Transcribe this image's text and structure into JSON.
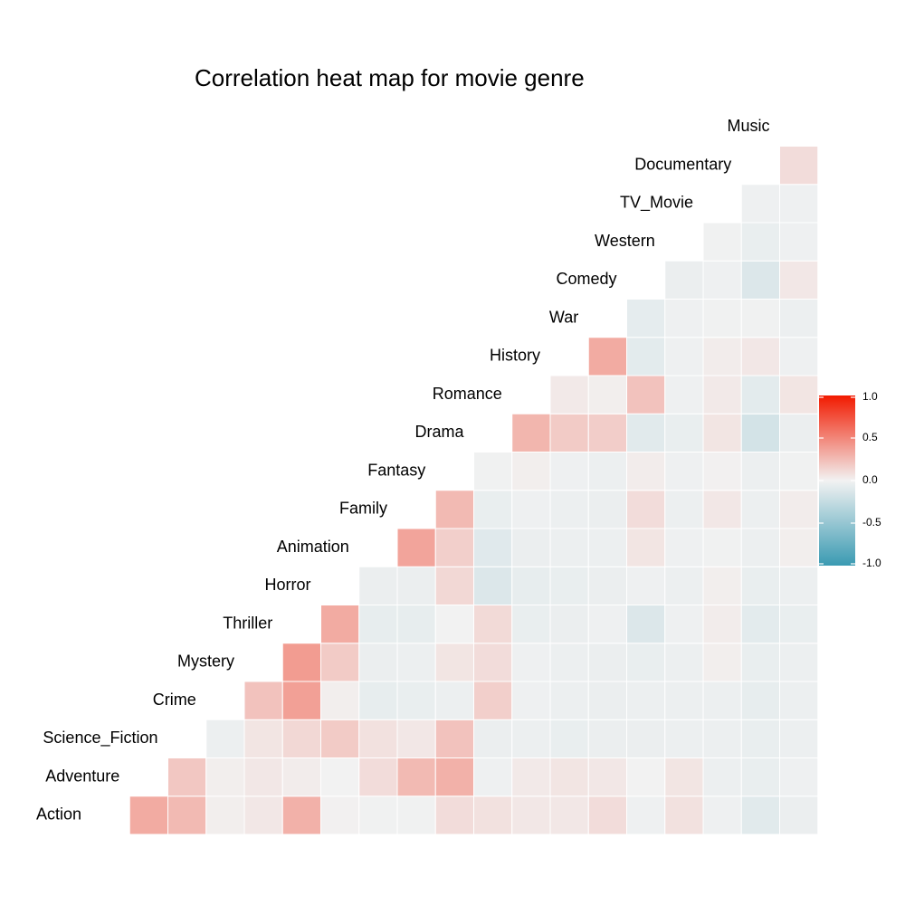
{
  "chart_data": {
    "type": "heatmap",
    "title": "Correlation heat map for movie genre",
    "variables": [
      "Action",
      "Adventure",
      "Science_Fiction",
      "Crime",
      "Mystery",
      "Thriller",
      "Horror",
      "Animation",
      "Family",
      "Fantasy",
      "Drama",
      "Romance",
      "History",
      "War",
      "Comedy",
      "Western",
      "TV_Movie",
      "Documentary",
      "Music"
    ],
    "layout": "lower-triangle, diagonal labels",
    "cells": [
      {
        "row": "Adventure",
        "col": "Action",
        "value": 0.33
      },
      {
        "row": "Science_Fiction",
        "col": "Action",
        "value": 0.26
      },
      {
        "row": "Science_Fiction",
        "col": "Adventure",
        "value": 0.2
      },
      {
        "row": "Crime",
        "col": "Action",
        "value": 0.02
      },
      {
        "row": "Crime",
        "col": "Adventure",
        "value": 0.02
      },
      {
        "row": "Crime",
        "col": "Science_Fiction",
        "value": -0.03
      },
      {
        "row": "Mystery",
        "col": "Action",
        "value": 0.05
      },
      {
        "row": "Mystery",
        "col": "Adventure",
        "value": 0.05
      },
      {
        "row": "Mystery",
        "col": "Science_Fiction",
        "value": 0.06
      },
      {
        "row": "Mystery",
        "col": "Crime",
        "value": 0.22
      },
      {
        "row": "Thriller",
        "col": "Action",
        "value": 0.3
      },
      {
        "row": "Thriller",
        "col": "Adventure",
        "value": 0.03
      },
      {
        "row": "Thriller",
        "col": "Science_Fiction",
        "value": 0.12
      },
      {
        "row": "Thriller",
        "col": "Crime",
        "value": 0.38
      },
      {
        "row": "Thriller",
        "col": "Mystery",
        "value": 0.4
      },
      {
        "row": "Horror",
        "col": "Action",
        "value": 0.01
      },
      {
        "row": "Horror",
        "col": "Adventure",
        "value": 0.0
      },
      {
        "row": "Horror",
        "col": "Science_Fiction",
        "value": 0.18
      },
      {
        "row": "Horror",
        "col": "Crime",
        "value": 0.02
      },
      {
        "row": "Horror",
        "col": "Mystery",
        "value": 0.18
      },
      {
        "row": "Horror",
        "col": "Thriller",
        "value": 0.33
      },
      {
        "row": "Animation",
        "col": "Action",
        "value": -0.01
      },
      {
        "row": "Animation",
        "col": "Adventure",
        "value": 0.1
      },
      {
        "row": "Animation",
        "col": "Science_Fiction",
        "value": 0.08
      },
      {
        "row": "Animation",
        "col": "Crime",
        "value": -0.06
      },
      {
        "row": "Animation",
        "col": "Mystery",
        "value": -0.04
      },
      {
        "row": "Animation",
        "col": "Thriller",
        "value": -0.06
      },
      {
        "row": "Animation",
        "col": "Horror",
        "value": -0.04
      },
      {
        "row": "Family",
        "col": "Action",
        "value": -0.01
      },
      {
        "row": "Family",
        "col": "Adventure",
        "value": 0.26
      },
      {
        "row": "Family",
        "col": "Science_Fiction",
        "value": 0.05
      },
      {
        "row": "Family",
        "col": "Crime",
        "value": -0.05
      },
      {
        "row": "Family",
        "col": "Mystery",
        "value": -0.03
      },
      {
        "row": "Family",
        "col": "Thriller",
        "value": -0.06
      },
      {
        "row": "Family",
        "col": "Horror",
        "value": -0.04
      },
      {
        "row": "Family",
        "col": "Animation",
        "value": 0.36
      },
      {
        "row": "Fantasy",
        "col": "Action",
        "value": 0.1
      },
      {
        "row": "Fantasy",
        "col": "Adventure",
        "value": 0.3
      },
      {
        "row": "Fantasy",
        "col": "Science_Fiction",
        "value": 0.22
      },
      {
        "row": "Fantasy",
        "col": "Crime",
        "value": -0.03
      },
      {
        "row": "Fantasy",
        "col": "Mystery",
        "value": 0.06
      },
      {
        "row": "Fantasy",
        "col": "Thriller",
        "value": 0.0
      },
      {
        "row": "Fantasy",
        "col": "Horror",
        "value": 0.12
      },
      {
        "row": "Fantasy",
        "col": "Animation",
        "value": 0.16
      },
      {
        "row": "Fantasy",
        "col": "Family",
        "value": 0.26
      },
      {
        "row": "Drama",
        "col": "Action",
        "value": 0.08
      },
      {
        "row": "Drama",
        "col": "Adventure",
        "value": -0.02
      },
      {
        "row": "Drama",
        "col": "Science_Fiction",
        "value": -0.04
      },
      {
        "row": "Drama",
        "col": "Crime",
        "value": 0.16
      },
      {
        "row": "Drama",
        "col": "Mystery",
        "value": 0.1
      },
      {
        "row": "Drama",
        "col": "Thriller",
        "value": 0.11
      },
      {
        "row": "Drama",
        "col": "Horror",
        "value": -0.12
      },
      {
        "row": "Drama",
        "col": "Animation",
        "value": -0.1
      },
      {
        "row": "Drama",
        "col": "Family",
        "value": -0.05
      },
      {
        "row": "Drama",
        "col": "Fantasy",
        "value": -0.01
      },
      {
        "row": "Romance",
        "col": "Action",
        "value": 0.05
      },
      {
        "row": "Romance",
        "col": "Adventure",
        "value": 0.04
      },
      {
        "row": "Romance",
        "col": "Science_Fiction",
        "value": -0.03
      },
      {
        "row": "Romance",
        "col": "Crime",
        "value": -0.02
      },
      {
        "row": "Romance",
        "col": "Mystery",
        "value": -0.02
      },
      {
        "row": "Romance",
        "col": "Thriller",
        "value": -0.05
      },
      {
        "row": "Romance",
        "col": "Horror",
        "value": -0.06
      },
      {
        "row": "Romance",
        "col": "Animation",
        "value": -0.04
      },
      {
        "row": "Romance",
        "col": "Family",
        "value": -0.02
      },
      {
        "row": "Romance",
        "col": "Fantasy",
        "value": 0.02
      },
      {
        "row": "Romance",
        "col": "Drama",
        "value": 0.28
      },
      {
        "row": "History",
        "col": "Action",
        "value": 0.05
      },
      {
        "row": "History",
        "col": "Adventure",
        "value": 0.06
      },
      {
        "row": "History",
        "col": "Science_Fiction",
        "value": -0.05
      },
      {
        "row": "History",
        "col": "Crime",
        "value": -0.03
      },
      {
        "row": "History",
        "col": "Mystery",
        "value": -0.03
      },
      {
        "row": "History",
        "col": "Thriller",
        "value": -0.04
      },
      {
        "row": "History",
        "col": "Horror",
        "value": -0.05
      },
      {
        "row": "History",
        "col": "Animation",
        "value": -0.03
      },
      {
        "row": "History",
        "col": "Family",
        "value": -0.03
      },
      {
        "row": "History",
        "col": "Fantasy",
        "value": -0.02
      },
      {
        "row": "History",
        "col": "Drama",
        "value": 0.18
      },
      {
        "row": "History",
        "col": "Romance",
        "value": 0.04
      },
      {
        "row": "War",
        "col": "Action",
        "value": 0.1
      },
      {
        "row": "War",
        "col": "Adventure",
        "value": 0.05
      },
      {
        "row": "War",
        "col": "Science_Fiction",
        "value": -0.04
      },
      {
        "row": "War",
        "col": "Crime",
        "value": -0.04
      },
      {
        "row": "War",
        "col": "Mystery",
        "value": -0.04
      },
      {
        "row": "War",
        "col": "Thriller",
        "value": -0.02
      },
      {
        "row": "War",
        "col": "Horror",
        "value": -0.04
      },
      {
        "row": "War",
        "col": "Animation",
        "value": -0.03
      },
      {
        "row": "War",
        "col": "Family",
        "value": -0.04
      },
      {
        "row": "War",
        "col": "Fantasy",
        "value": -0.03
      },
      {
        "row": "War",
        "col": "Drama",
        "value": 0.17
      },
      {
        "row": "War",
        "col": "Romance",
        "value": 0.02
      },
      {
        "row": "War",
        "col": "History",
        "value": 0.33
      },
      {
        "row": "Comedy",
        "col": "Action",
        "value": -0.02
      },
      {
        "row": "Comedy",
        "col": "Adventure",
        "value": 0.0
      },
      {
        "row": "Comedy",
        "col": "Science_Fiction",
        "value": -0.04
      },
      {
        "row": "Comedy",
        "col": "Crime",
        "value": -0.03
      },
      {
        "row": "Comedy",
        "col": "Mystery",
        "value": -0.05
      },
      {
        "row": "Comedy",
        "col": "Thriller",
        "value": -0.12
      },
      {
        "row": "Comedy",
        "col": "Horror",
        "value": -0.02
      },
      {
        "row": "Comedy",
        "col": "Animation",
        "value": 0.06
      },
      {
        "row": "Comedy",
        "col": "Family",
        "value": 0.1
      },
      {
        "row": "Comedy",
        "col": "Fantasy",
        "value": 0.03
      },
      {
        "row": "Comedy",
        "col": "Drama",
        "value": -0.09
      },
      {
        "row": "Comedy",
        "col": "Romance",
        "value": 0.22
      },
      {
        "row": "Comedy",
        "col": "History",
        "value": -0.08
      },
      {
        "row": "Comedy",
        "col": "War",
        "value": -0.07
      },
      {
        "row": "Western",
        "col": "Action",
        "value": 0.08
      },
      {
        "row": "Western",
        "col": "Adventure",
        "value": 0.06
      },
      {
        "row": "Western",
        "col": "Science_Fiction",
        "value": -0.03
      },
      {
        "row": "Western",
        "col": "Crime",
        "value": -0.03
      },
      {
        "row": "Western",
        "col": "Mystery",
        "value": -0.03
      },
      {
        "row": "Western",
        "col": "Thriller",
        "value": -0.02
      },
      {
        "row": "Western",
        "col": "Horror",
        "value": -0.03
      },
      {
        "row": "Western",
        "col": "Animation",
        "value": -0.02
      },
      {
        "row": "Western",
        "col": "Family",
        "value": -0.03
      },
      {
        "row": "Western",
        "col": "Fantasy",
        "value": -0.02
      },
      {
        "row": "Western",
        "col": "Drama",
        "value": -0.05
      },
      {
        "row": "Western",
        "col": "Romance",
        "value": -0.02
      },
      {
        "row": "Western",
        "col": "History",
        "value": -0.02
      },
      {
        "row": "Western",
        "col": "War",
        "value": -0.02
      },
      {
        "row": "Western",
        "col": "Comedy",
        "value": -0.04
      },
      {
        "row": "TV_Movie",
        "col": "Action",
        "value": -0.02
      },
      {
        "row": "TV_Movie",
        "col": "Adventure",
        "value": -0.03
      },
      {
        "row": "TV_Movie",
        "col": "Science_Fiction",
        "value": -0.03
      },
      {
        "row": "TV_Movie",
        "col": "Crime",
        "value": -0.03
      },
      {
        "row": "TV_Movie",
        "col": "Mystery",
        "value": 0.02
      },
      {
        "row": "TV_Movie",
        "col": "Thriller",
        "value": 0.03
      },
      {
        "row": "TV_Movie",
        "col": "Horror",
        "value": 0.02
      },
      {
        "row": "TV_Movie",
        "col": "Animation",
        "value": -0.01
      },
      {
        "row": "TV_Movie",
        "col": "Family",
        "value": 0.05
      },
      {
        "row": "TV_Movie",
        "col": "Fantasy",
        "value": 0.01
      },
      {
        "row": "TV_Movie",
        "col": "Drama",
        "value": 0.06
      },
      {
        "row": "TV_Movie",
        "col": "Romance",
        "value": 0.04
      },
      {
        "row": "TV_Movie",
        "col": "History",
        "value": 0.03
      },
      {
        "row": "TV_Movie",
        "col": "War",
        "value": -0.01
      },
      {
        "row": "TV_Movie",
        "col": "Comedy",
        "value": -0.02
      },
      {
        "row": "TV_Movie",
        "col": "Western",
        "value": -0.01
      },
      {
        "row": "Documentary",
        "col": "Action",
        "value": -0.09
      },
      {
        "row": "Documentary",
        "col": "Adventure",
        "value": -0.05
      },
      {
        "row": "Documentary",
        "col": "Science_Fiction",
        "value": -0.05
      },
      {
        "row": "Documentary",
        "col": "Crime",
        "value": -0.06
      },
      {
        "row": "Documentary",
        "col": "Mystery",
        "value": -0.05
      },
      {
        "row": "Documentary",
        "col": "Thriller",
        "value": -0.08
      },
      {
        "row": "Documentary",
        "col": "Horror",
        "value": -0.05
      },
      {
        "row": "Documentary",
        "col": "Animation",
        "value": -0.03
      },
      {
        "row": "Documentary",
        "col": "Family",
        "value": -0.03
      },
      {
        "row": "Documentary",
        "col": "Fantasy",
        "value": -0.03
      },
      {
        "row": "Documentary",
        "col": "Drama",
        "value": -0.17
      },
      {
        "row": "Documentary",
        "col": "Romance",
        "value": -0.08
      },
      {
        "row": "Documentary",
        "col": "History",
        "value": 0.05
      },
      {
        "row": "Documentary",
        "col": "War",
        "value": -0.01
      },
      {
        "row": "Documentary",
        "col": "Comedy",
        "value": -0.12
      },
      {
        "row": "Documentary",
        "col": "Western",
        "value": -0.05
      },
      {
        "row": "Documentary",
        "col": "TV_Movie",
        "value": -0.02
      },
      {
        "row": "Music",
        "col": "Action",
        "value": -0.04
      },
      {
        "row": "Music",
        "col": "Adventure",
        "value": -0.02
      },
      {
        "row": "Music",
        "col": "Science_Fiction",
        "value": -0.03
      },
      {
        "row": "Music",
        "col": "Crime",
        "value": -0.03
      },
      {
        "row": "Music",
        "col": "Mystery",
        "value": -0.03
      },
      {
        "row": "Music",
        "col": "Thriller",
        "value": -0.05
      },
      {
        "row": "Music",
        "col": "Horror",
        "value": -0.03
      },
      {
        "row": "Music",
        "col": "Animation",
        "value": 0.02
      },
      {
        "row": "Music",
        "col": "Family",
        "value": 0.03
      },
      {
        "row": "Music",
        "col": "Fantasy",
        "value": -0.01
      },
      {
        "row": "Music",
        "col": "Drama",
        "value": -0.04
      },
      {
        "row": "Music",
        "col": "Romance",
        "value": 0.06
      },
      {
        "row": "Music",
        "col": "History",
        "value": -0.02
      },
      {
        "row": "Music",
        "col": "War",
        "value": -0.03
      },
      {
        "row": "Music",
        "col": "Comedy",
        "value": 0.05
      },
      {
        "row": "Music",
        "col": "Western",
        "value": -0.02
      },
      {
        "row": "Music",
        "col": "TV_Movie",
        "value": -0.02
      },
      {
        "row": "Music",
        "col": "Documentary",
        "value": 0.1
      }
    ],
    "color_scale": {
      "low": "#3a9ab2",
      "mid": "#f2f2f2",
      "high": "#f21a00",
      "range": [
        -1,
        1
      ],
      "ticks": [
        "1.0",
        "0.5",
        "0.0",
        "-0.5",
        "-1.0"
      ]
    },
    "legend_position": "right"
  }
}
